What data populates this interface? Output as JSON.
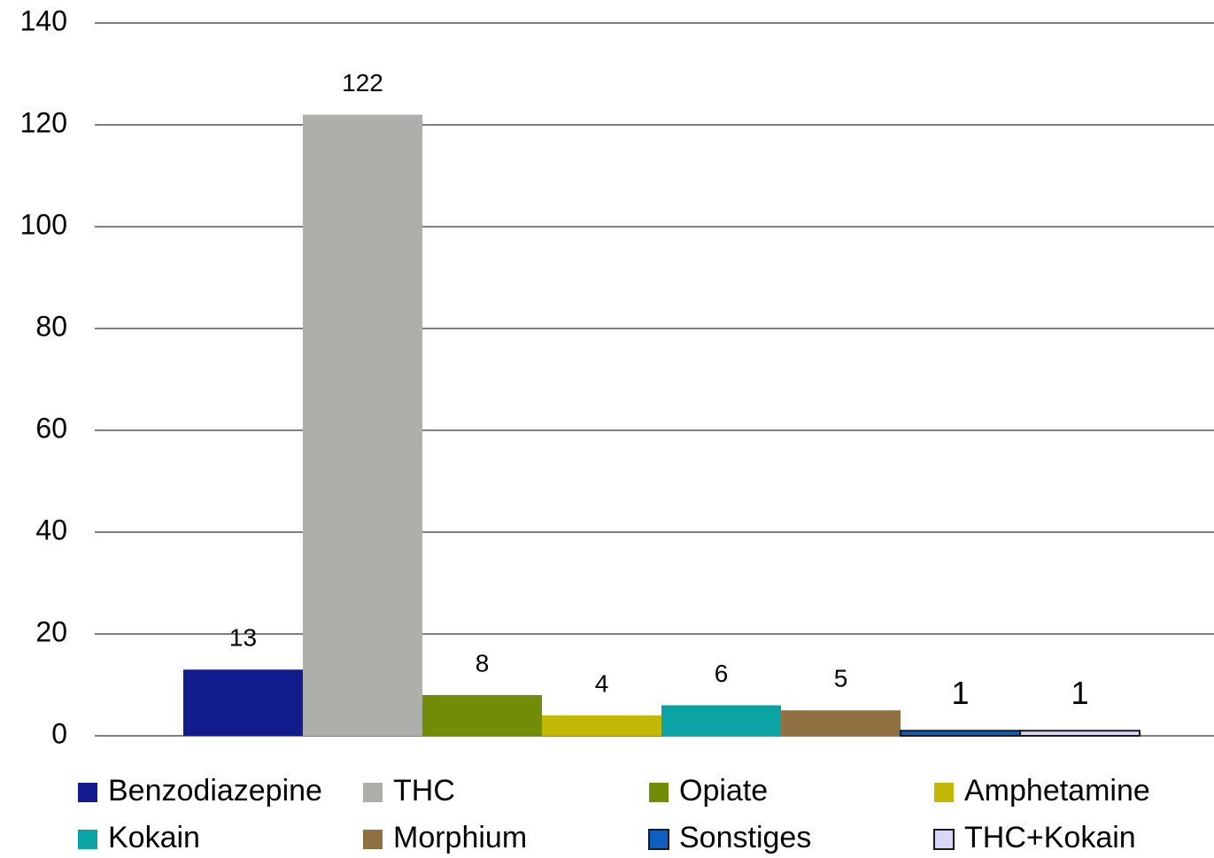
{
  "chart_data": {
    "type": "bar",
    "categories": [
      null
    ],
    "series": [
      {
        "name": "Benzodiazepine",
        "color": "#131c8c",
        "values": [
          13
        ]
      },
      {
        "name": "THC",
        "color": "#adb0aa",
        "values": [
          122
        ]
      },
      {
        "name": "Opiate",
        "color": "#718c07",
        "values": [
          8
        ]
      },
      {
        "name": "Amphetamine",
        "color": "#c2b805",
        "values": [
          4
        ]
      },
      {
        "name": "Kokain",
        "color": "#0ba3a3",
        "values": [
          6
        ]
      },
      {
        "name": "Morphium",
        "color": "#8f7040",
        "values": [
          5
        ]
      },
      {
        "name": "Sonstiges",
        "color": "#0d5fc4",
        "values": [
          1
        ]
      },
      {
        "name": "THC+Kokain",
        "color": "#d9d6fa",
        "values": [
          1
        ]
      }
    ],
    "ylim": [
      0,
      140
    ],
    "yticks": [
      0,
      20,
      40,
      60,
      80,
      100,
      120,
      140
    ],
    "grid": true,
    "legend": "bottom"
  }
}
